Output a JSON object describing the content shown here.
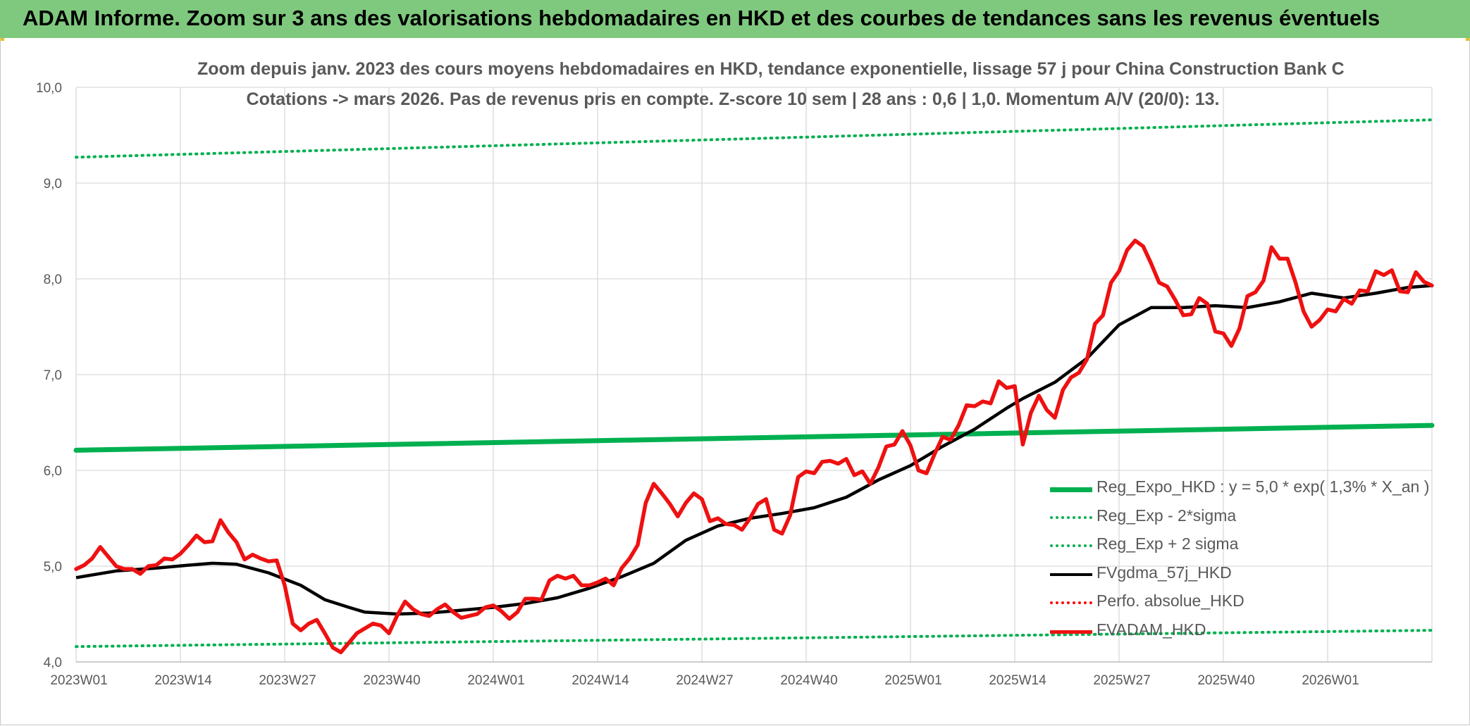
{
  "banner": {
    "title": "ADAM Informe. Zoom sur 3 ans des valorisations hebdomadaires en HKD et des courbes de tendances sans les revenus éventuels"
  },
  "chart_data": {
    "type": "line",
    "title_line1": "Zoom depuis janv. 2023 des cours moyens hebdomadaires en HKD, tendance exponentielle, lissage 57 j pour China Construction Bank C",
    "title_line2": "Cotations -> mars 2026. Pas de revenus pris en compte. Z-score 10 sem | 28 ans : 0,6 | 1,0. Momentum A/V (20/0): 13.",
    "xlabel": "",
    "ylabel": "",
    "ylim": [
      4.0,
      10.0
    ],
    "y_ticks": [
      "4,0",
      "5,0",
      "6,0",
      "7,0",
      "8,0",
      "9,0",
      "10,0"
    ],
    "x_ticks": [
      "2023W01",
      "2023W14",
      "2023W27",
      "2023W40",
      "2024W01",
      "2024W14",
      "2024W27",
      "2024W40",
      "2025W01",
      "2025W14",
      "2025W27",
      "2025W40",
      "2026W01"
    ],
    "x_range_weeks": [
      0,
      169
    ],
    "grid": true,
    "legend_position": "bottom-right",
    "series": [
      {
        "name": "Reg_Expo_HKD : y = 5,0 * exp( 1,3% *  X_an )",
        "color": "#00b050",
        "style": "solid-thick",
        "x": [
          0,
          169
        ],
        "values": [
          6.21,
          6.47
        ]
      },
      {
        "name": "Reg_Exp - 2*sigma",
        "color": "#00b050",
        "style": "dotted",
        "x": [
          0,
          169
        ],
        "values": [
          4.16,
          4.33
        ]
      },
      {
        "name": "Reg_Exp + 2 sigma",
        "color": "#00b050",
        "style": "dotted",
        "x": [
          0,
          169
        ],
        "values": [
          9.27,
          9.66
        ]
      },
      {
        "name": "FVgdma_57j_HKD",
        "color": "#000000",
        "style": "solid",
        "x": [
          0,
          5,
          10,
          14,
          17,
          20,
          24,
          28,
          31,
          34,
          36,
          40,
          44,
          48,
          52,
          56,
          60,
          64,
          68,
          72,
          76,
          80,
          84,
          88,
          92,
          96,
          100,
          104,
          108,
          112,
          116,
          118,
          122,
          126,
          130,
          134,
          138,
          142,
          146,
          150,
          154,
          158,
          162,
          166,
          169
        ],
        "values": [
          4.88,
          4.95,
          4.98,
          5.01,
          5.03,
          5.02,
          4.93,
          4.8,
          4.65,
          4.57,
          4.52,
          4.5,
          4.51,
          4.54,
          4.57,
          4.61,
          4.67,
          4.77,
          4.89,
          5.03,
          5.27,
          5.42,
          5.5,
          5.55,
          5.61,
          5.72,
          5.9,
          6.05,
          6.25,
          6.43,
          6.65,
          6.75,
          6.92,
          7.17,
          7.52,
          7.7,
          7.7,
          7.72,
          7.7,
          7.76,
          7.85,
          7.8,
          7.85,
          7.91,
          7.93
        ]
      },
      {
        "name": "Perfo. absolue_HKD",
        "color": "#ff0000",
        "style": "dotted",
        "x": [],
        "values": []
      },
      {
        "name": "FVADAM_HKD",
        "color": "#ee1111",
        "style": "solid-thick",
        "x": [
          0,
          1,
          2,
          3,
          4,
          5,
          6,
          7,
          8,
          9,
          10,
          11,
          12,
          13,
          14,
          15,
          16,
          17,
          18,
          19,
          20,
          21,
          22,
          23,
          24,
          25,
          26,
          27,
          28,
          29,
          30,
          31,
          32,
          33,
          34,
          35,
          36,
          37,
          38,
          39,
          40,
          41,
          42,
          43,
          44,
          45,
          46,
          47,
          48,
          49,
          50,
          51,
          52,
          53,
          54,
          55,
          56,
          57,
          58,
          59,
          60,
          61,
          62,
          63,
          64,
          65,
          66,
          67,
          68,
          69,
          70,
          71,
          72,
          73,
          74,
          75,
          76,
          77,
          78,
          79,
          80,
          81,
          82,
          83,
          84,
          85,
          86,
          87,
          88,
          89,
          90,
          91,
          92,
          93,
          94,
          95,
          96,
          97,
          98,
          99,
          100,
          101,
          102,
          103,
          104,
          105,
          106,
          107,
          108,
          109,
          110,
          111,
          112,
          113,
          114,
          115,
          116,
          117,
          118,
          119,
          120,
          121,
          122,
          123,
          124,
          125,
          126,
          127,
          128,
          129,
          130,
          131,
          132,
          133,
          134,
          135,
          136,
          137,
          138,
          139,
          140,
          141,
          142,
          143,
          144,
          145,
          146,
          147,
          148,
          149,
          150,
          151,
          152,
          153,
          154,
          155,
          156,
          157,
          158,
          159,
          160,
          161,
          162,
          163,
          164,
          165,
          166,
          167,
          168,
          169
        ],
        "values": [
          4.97,
          5.01,
          5.08,
          5.2,
          5.1,
          5.0,
          4.97,
          4.97,
          4.92,
          5.0,
          5.01,
          5.08,
          5.07,
          5.13,
          5.22,
          5.32,
          5.25,
          5.26,
          5.48,
          5.35,
          5.25,
          5.07,
          5.12,
          5.08,
          5.05,
          5.06,
          4.8,
          4.4,
          4.33,
          4.4,
          4.44,
          4.3,
          4.15,
          4.1,
          4.2,
          4.3,
          4.35,
          4.4,
          4.38,
          4.3,
          4.48,
          4.63,
          4.55,
          4.5,
          4.48,
          4.55,
          4.6,
          4.52,
          4.46,
          4.48,
          4.5,
          4.57,
          4.59,
          4.53,
          4.45,
          4.52,
          4.66,
          4.66,
          4.65,
          4.85,
          4.9,
          4.87,
          4.9,
          4.8,
          4.8,
          4.83,
          4.87,
          4.8,
          4.98,
          5.08,
          5.22,
          5.66,
          5.86,
          5.76,
          5.65,
          5.52,
          5.66,
          5.76,
          5.7,
          5.47,
          5.5,
          5.44,
          5.43,
          5.38,
          5.5,
          5.65,
          5.7,
          5.38,
          5.34,
          5.53,
          5.93,
          5.99,
          5.97,
          6.09,
          6.1,
          6.07,
          6.12,
          5.95,
          5.99,
          5.86,
          6.03,
          6.25,
          6.27,
          6.41,
          6.26,
          6.0,
          5.97,
          6.17,
          6.35,
          6.32,
          6.47,
          6.68,
          6.67,
          6.72,
          6.7,
          6.93,
          6.86,
          6.88,
          6.27,
          6.6,
          6.78,
          6.63,
          6.55,
          6.84,
          6.97,
          7.02,
          7.16,
          7.53,
          7.62,
          7.96,
          8.08,
          8.3,
          8.4,
          8.34,
          8.16,
          7.96,
          7.92,
          7.78,
          7.62,
          7.63,
          7.8,
          7.74,
          7.45,
          7.43,
          7.3,
          7.48,
          7.82,
          7.86,
          7.98,
          8.33,
          8.21,
          8.21,
          7.96,
          7.66,
          7.5,
          7.57,
          7.68,
          7.66,
          7.79,
          7.74,
          7.88,
          7.87,
          8.08,
          8.04,
          8.09,
          7.87,
          7.86,
          8.07,
          7.97,
          7.93
        ]
      }
    ]
  }
}
